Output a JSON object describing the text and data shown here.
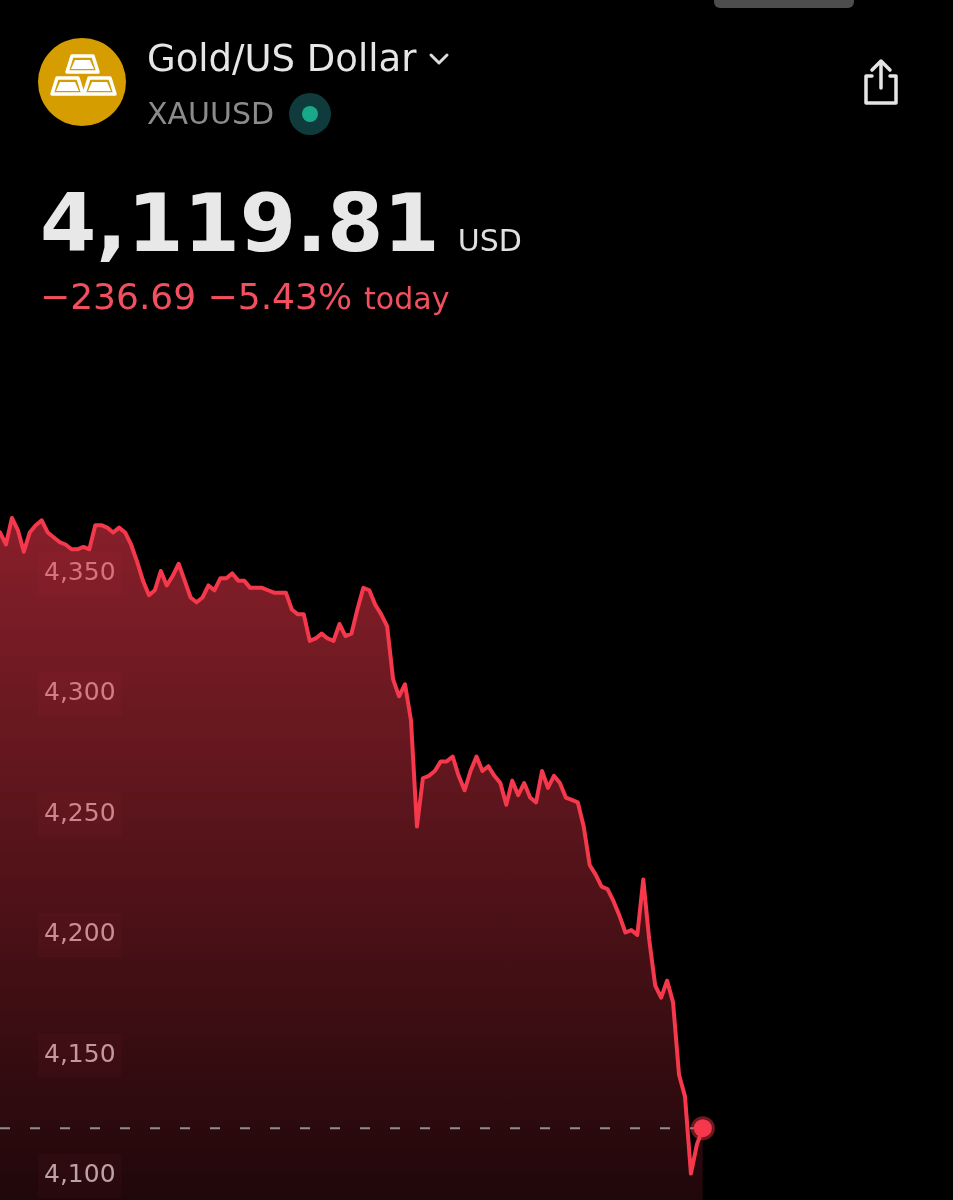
{
  "chart_data": {
    "type": "area",
    "title": "Gold/US Dollar",
    "subtitle": "XAUUSD",
    "annotations": [
      "4,119.81",
      "USD",
      "−236.69 −5.43%",
      "today"
    ],
    "categories": [
      null,
      null,
      null,
      null,
      null,
      null,
      null,
      null,
      null,
      null,
      null,
      null,
      null,
      null,
      null,
      null,
      null,
      null,
      null,
      null,
      null,
      null,
      null,
      null,
      null,
      null,
      null,
      null,
      null,
      null,
      null,
      null,
      null,
      null,
      null,
      null,
      null,
      null,
      null,
      null,
      null,
      null,
      null,
      null,
      null,
      null,
      null,
      null,
      null,
      null,
      null,
      null,
      null,
      null,
      null,
      null,
      null,
      null,
      null,
      null,
      null,
      null,
      null,
      null,
      null,
      null,
      null,
      null,
      null,
      null,
      null,
      null,
      null,
      null,
      null,
      null,
      null,
      null,
      null,
      null,
      null,
      null,
      null,
      null,
      null,
      null,
      null,
      null,
      null,
      null,
      null,
      null,
      null,
      null,
      null,
      null,
      null,
      null,
      null,
      null,
      null,
      null,
      null,
      null,
      null,
      null,
      null,
      null,
      null,
      null,
      null,
      null,
      null,
      null,
      null,
      null,
      null,
      null,
      null,
      null,
      null,
      null,
      null,
      null,
      null,
      null,
      null,
      null,
      null,
      null,
      null,
      null,
      null,
      null,
      null,
      null,
      null,
      null,
      null,
      null,
      null,
      null,
      null,
      null,
      null,
      null,
      null,
      null,
      null,
      null,
      null,
      null,
      null,
      null,
      null,
      null,
      null,
      null,
      null,
      null,
      null
    ],
    "series": [
      {
        "color": "#f5384b",
        "values": [
          4367,
          4362,
          4373,
          4368,
          4359,
          4367,
          4370,
          4372,
          4367,
          4365,
          4363,
          4362,
          4360,
          4360,
          4361,
          4360,
          4370,
          4370,
          4369,
          4367,
          4369,
          4367,
          4362,
          4355,
          4347,
          4341,
          4343,
          4351,
          4345,
          4349,
          4354,
          4347,
          4340,
          4338,
          4340,
          4345,
          4343,
          4348,
          4348,
          4350,
          4347,
          4347,
          4344,
          4344,
          4344,
          4343,
          4342,
          4342,
          4342,
          4335,
          4333,
          4333,
          4322,
          4323,
          4325,
          4323,
          4322,
          4329,
          4324,
          4325,
          4335,
          4344,
          4343,
          4337,
          4333,
          4328,
          4306,
          4299,
          4304,
          4289,
          4245,
          4265,
          4266,
          4268,
          4272,
          4272,
          4274,
          4266,
          4260,
          4268,
          4274,
          4268,
          4270,
          4266,
          4263,
          4254,
          4264,
          4258,
          4263,
          4257,
          4255,
          4268,
          4261,
          4266,
          4263,
          4257,
          4256,
          4255,
          4245,
          4229,
          4225,
          4220,
          4219,
          4214,
          4208,
          4201,
          4202,
          4200,
          4223,
          4198,
          4179,
          4174,
          4181,
          4172,
          4142,
          4133,
          4101,
          4113,
          4119.81,
          null,
          null,
          null,
          null,
          null,
          null,
          null,
          null,
          null,
          null,
          null,
          null,
          null,
          null,
          null,
          null,
          null,
          null,
          null,
          null,
          null,
          null,
          null,
          null,
          null,
          null,
          null,
          null,
          null,
          null,
          null,
          null,
          null,
          null,
          null,
          null,
          null,
          null,
          null,
          null,
          null,
          null
        ]
      },
      {
        "type": "scatter",
        "marker": "circle",
        "color": "#f5384b",
        "values": [
          null,
          null,
          null,
          null,
          null,
          null,
          null,
          null,
          null,
          null,
          null,
          null,
          null,
          null,
          null,
          null,
          null,
          null,
          null,
          null,
          null,
          null,
          null,
          null,
          null,
          null,
          null,
          null,
          null,
          null,
          null,
          null,
          null,
          null,
          null,
          null,
          null,
          null,
          null,
          null,
          null,
          null,
          null,
          null,
          null,
          null,
          null,
          null,
          null,
          null,
          null,
          null,
          null,
          null,
          null,
          null,
          null,
          null,
          null,
          null,
          null,
          null,
          null,
          null,
          null,
          null,
          null,
          null,
          null,
          null,
          null,
          null,
          null,
          null,
          null,
          null,
          null,
          null,
          null,
          null,
          null,
          null,
          null,
          null,
          null,
          null,
          null,
          null,
          null,
          null,
          null,
          null,
          null,
          null,
          null,
          null,
          null,
          null,
          null,
          null,
          null,
          null,
          null,
          null,
          null,
          null,
          null,
          null,
          null,
          null,
          null,
          null,
          null,
          null,
          null,
          null,
          null,
          null,
          4119.81,
          null,
          null,
          null,
          null,
          null,
          null,
          null,
          null,
          null,
          null,
          null,
          null,
          null,
          null,
          null,
          null,
          null,
          null,
          null,
          null,
          null,
          null,
          null,
          null,
          null,
          null,
          null,
          null,
          null,
          null,
          null,
          null,
          null,
          null,
          null,
          null,
          null,
          null,
          null,
          null,
          null,
          null
        ]
      }
    ],
    "ylim": [
      4090,
      4390
    ],
    "yticks": [
      {
        "value": 4100,
        "label": "4,100"
      },
      {
        "value": 4150,
        "label": "4,150"
      },
      {
        "value": 4200,
        "label": "4,200"
      },
      {
        "value": 4250,
        "label": "4,250"
      },
      {
        "value": 4300,
        "label": "4,300"
      },
      {
        "value": 4350,
        "label": "4,350"
      }
    ],
    "tick_labels": "y",
    "ref_lines": [
      {
        "axis": "y",
        "value": 4119.81,
        "color": "#8e8e8e",
        "line_style": "dashed"
      }
    ]
  }
}
